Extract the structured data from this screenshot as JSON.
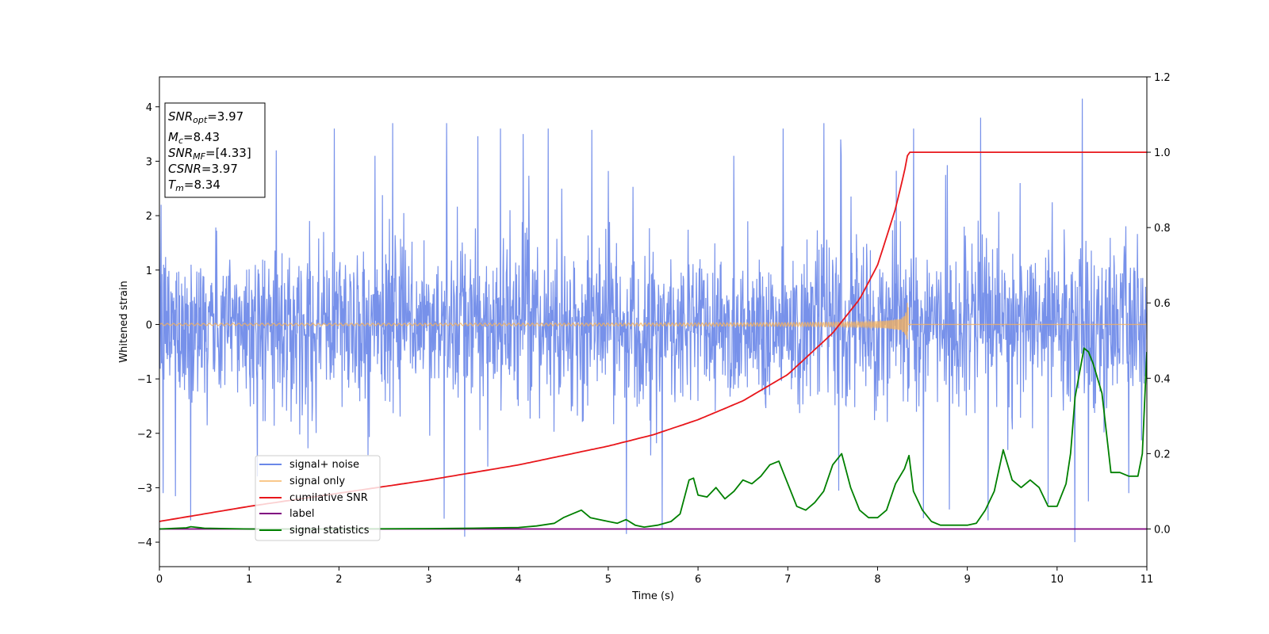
{
  "chart_data": {
    "type": "line",
    "xlabel": "Time (s)",
    "ylabel": "Whitened strain",
    "xlim": [
      0,
      11
    ],
    "ylim": [
      -4.45,
      4.55
    ],
    "y2lim": [
      -0.1,
      1.2
    ],
    "x_ticks": [
      0,
      1,
      2,
      3,
      4,
      5,
      6,
      7,
      8,
      9,
      10,
      11
    ],
    "y_ticks": [
      4,
      3,
      2,
      1,
      0,
      -1,
      -2,
      -3,
      -4
    ],
    "y_tick_labels": [
      "4",
      "3",
      "2",
      "1",
      "0",
      "−1",
      "−2",
      "−3",
      "−4"
    ],
    "y2_ticks": [
      1.2,
      1.0,
      0.8,
      0.6,
      0.4,
      0.2,
      0.0
    ],
    "y2_tick_labels": [
      "1.2",
      "1.0",
      "0.8",
      "0.6",
      "0.4",
      "0.2",
      "0.0"
    ],
    "legend_position": "lower-left",
    "series": [
      {
        "name": "signal+ noise",
        "axis": "left",
        "color": "#6b88e8",
        "style": "noisy strain, std ~0.7, extreme spikes",
        "spikes": [
          [
            0.02,
            2.2
          ],
          [
            0.04,
            -3.1
          ],
          [
            0.35,
            -3.6
          ],
          [
            1.3,
            3.2
          ],
          [
            1.95,
            3.6
          ],
          [
            2.4,
            3.1
          ],
          [
            2.6,
            3.7
          ],
          [
            3.2,
            3.7
          ],
          [
            3.4,
            -3.9
          ],
          [
            3.8,
            3.6
          ],
          [
            4.05,
            3.5
          ],
          [
            5.2,
            -3.85
          ],
          [
            5.6,
            -3.75
          ],
          [
            6.4,
            3.1
          ],
          [
            6.95,
            3.6
          ],
          [
            7.4,
            3.7
          ],
          [
            8.4,
            3.6
          ],
          [
            8.8,
            -3.4
          ],
          [
            9.15,
            3.8
          ],
          [
            9.9,
            -3.3
          ],
          [
            10.2,
            -4.0
          ],
          [
            10.28,
            4.15
          ],
          [
            10.35,
            -3.25
          ],
          [
            10.8,
            -3.1
          ]
        ]
      },
      {
        "name": "signal only",
        "axis": "left",
        "color": "#f7b15a",
        "style": "chirp, amplitude grows to ~0.65 at merger",
        "merger_time": 8.34,
        "max_amplitude": 0.65
      },
      {
        "name": "cumilative SNR",
        "axis": "right",
        "color": "#e8161b",
        "x": [
          0,
          1,
          2,
          3,
          4,
          5,
          5.5,
          6,
          6.5,
          7,
          7.5,
          7.8,
          8.0,
          8.2,
          8.3,
          8.34,
          11
        ],
        "y": [
          0.02,
          0.06,
          0.095,
          0.13,
          0.17,
          0.22,
          0.25,
          0.29,
          0.34,
          0.41,
          0.52,
          0.61,
          0.7,
          0.85,
          0.95,
          1.0,
          1.0
        ]
      },
      {
        "name": "label",
        "axis": "right",
        "color": "#800080",
        "x": [
          0,
          11
        ],
        "y": [
          0,
          0
        ]
      },
      {
        "name": "signal statistics",
        "axis": "right",
        "color": "#008000",
        "x": [
          0,
          0.3,
          0.35,
          0.5,
          1,
          2,
          3,
          3.5,
          4,
          4.2,
          4.4,
          4.5,
          4.6,
          4.7,
          4.8,
          4.9,
          5.0,
          5.1,
          5.2,
          5.3,
          5.4,
          5.55,
          5.7,
          5.8,
          5.9,
          5.95,
          6.0,
          6.1,
          6.2,
          6.3,
          6.4,
          6.5,
          6.6,
          6.7,
          6.8,
          6.9,
          6.95,
          7.0,
          7.1,
          7.2,
          7.3,
          7.4,
          7.5,
          7.6,
          7.7,
          7.8,
          7.9,
          8.0,
          8.1,
          8.2,
          8.3,
          8.35,
          8.4,
          8.5,
          8.6,
          8.7,
          8.8,
          8.9,
          9.0,
          9.1,
          9.2,
          9.3,
          9.4,
          9.5,
          9.6,
          9.7,
          9.8,
          9.9,
          10.0,
          10.1,
          10.15,
          10.2,
          10.3,
          10.35,
          10.4,
          10.5,
          10.6,
          10.7,
          10.8,
          10.9,
          10.95,
          11.0
        ],
        "y": [
          0,
          0.003,
          0.006,
          0.002,
          0,
          0,
          0.001,
          0.002,
          0.004,
          0.008,
          0.015,
          0.03,
          0.04,
          0.05,
          0.03,
          0.025,
          0.02,
          0.015,
          0.025,
          0.01,
          0.005,
          0.01,
          0.02,
          0.04,
          0.13,
          0.135,
          0.09,
          0.085,
          0.11,
          0.08,
          0.1,
          0.13,
          0.12,
          0.14,
          0.17,
          0.18,
          0.15,
          0.12,
          0.06,
          0.05,
          0.07,
          0.1,
          0.17,
          0.2,
          0.11,
          0.05,
          0.03,
          0.03,
          0.05,
          0.12,
          0.16,
          0.195,
          0.1,
          0.05,
          0.02,
          0.01,
          0.01,
          0.01,
          0.01,
          0.015,
          0.05,
          0.1,
          0.21,
          0.13,
          0.11,
          0.13,
          0.11,
          0.06,
          0.06,
          0.12,
          0.2,
          0.35,
          0.48,
          0.47,
          0.44,
          0.36,
          0.15,
          0.15,
          0.14,
          0.14,
          0.2,
          0.47
        ]
      }
    ],
    "info_box": {
      "snr_opt": "=3.97",
      "mc": "=8.43",
      "snr_mf": "=[4.33]",
      "csnr": "=3.97",
      "tm": "=8.34"
    }
  }
}
